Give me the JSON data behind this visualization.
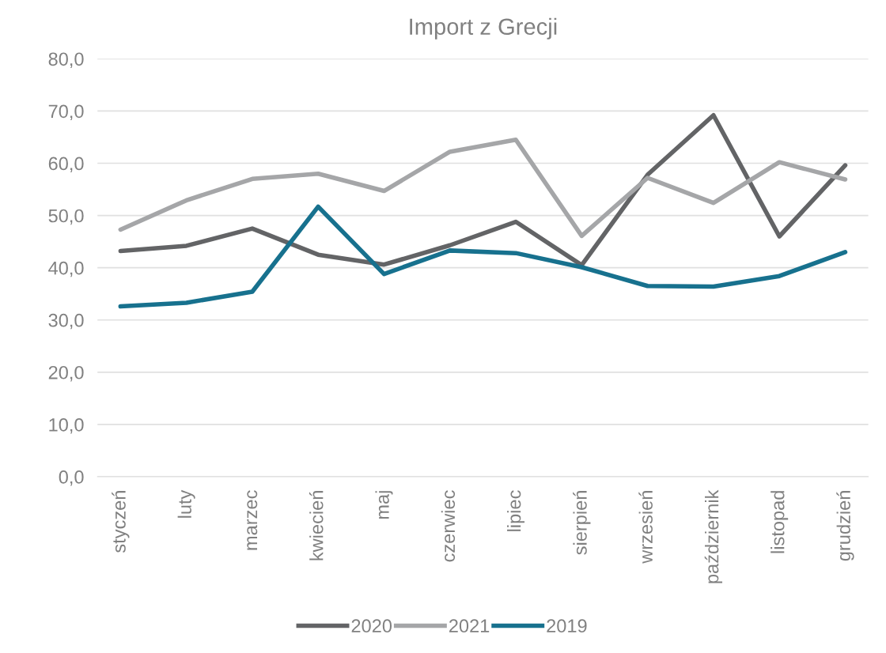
{
  "chart_data": {
    "type": "line",
    "title": "Import z Grecji",
    "categories": [
      "styczeń",
      "luty",
      "marzec",
      "kwiecień",
      "maj",
      "czerwiec",
      "lipiec",
      "sierpień",
      "wrzesień",
      "październik",
      "listopad",
      "grudzień"
    ],
    "series": [
      {
        "name": "2020",
        "color": "#636466",
        "values": [
          43.2,
          44.2,
          47.5,
          42.5,
          40.6,
          44.3,
          48.8,
          40.5,
          57.8,
          69.2,
          46.0,
          59.6
        ]
      },
      {
        "name": "2021",
        "color": "#a5a6a8",
        "values": [
          47.3,
          52.9,
          57.0,
          58.0,
          54.7,
          62.2,
          64.5,
          46.1,
          57.2,
          52.4,
          60.2,
          56.9
        ]
      },
      {
        "name": "2019",
        "color": "#17718e",
        "values": [
          32.6,
          33.3,
          35.4,
          51.7,
          38.8,
          43.3,
          42.8,
          40.1,
          36.5,
          36.4,
          38.4,
          43.0
        ]
      }
    ],
    "ylim": [
      0,
      80
    ],
    "yticks": [
      {
        "value": 0,
        "label": "0,0"
      },
      {
        "value": 10,
        "label": "10,0"
      },
      {
        "value": 20,
        "label": "20,0"
      },
      {
        "value": 30,
        "label": "30,0"
      },
      {
        "value": 40,
        "label": "40,0"
      },
      {
        "value": 50,
        "label": "50,0"
      },
      {
        "value": 60,
        "label": "60,0"
      },
      {
        "value": 70,
        "label": "70,0"
      },
      {
        "value": 80,
        "label": "80,0"
      }
    ],
    "grid": "y",
    "legend": "bottom",
    "line_style": "solid",
    "marker": "none"
  }
}
